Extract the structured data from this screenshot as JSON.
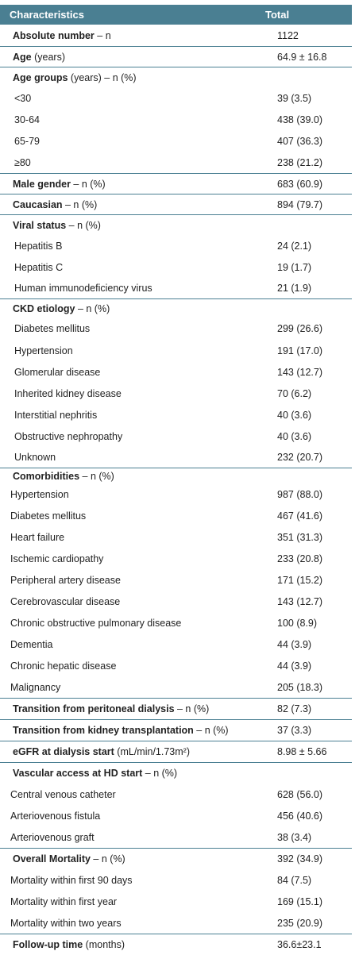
{
  "header": {
    "col1": "Characteristics",
    "col2": "Total"
  },
  "rows": [
    {
      "label_bold": "Absolute number",
      "label_rest": " – n",
      "value": "1122",
      "type": "group",
      "sep": false,
      "h": 27
    },
    {
      "label_bold": "Age",
      "label_rest": " (years)",
      "value": "64.9 ± 16.8",
      "type": "group",
      "sep": true,
      "h": 26
    },
    {
      "label_bold": "Age groups",
      "label_rest": " (years) – n (%)",
      "value": "",
      "type": "group",
      "sep": true,
      "h": 26
    },
    {
      "label_bold": "",
      "label_rest": "<30",
      "value": "39 (3.5)",
      "type": "sub",
      "sep": false,
      "h": 27
    },
    {
      "label_bold": "",
      "label_rest": "30-64",
      "value": "438 (39.0)",
      "type": "sub",
      "sep": false,
      "h": 27
    },
    {
      "label_bold": "",
      "label_rest": "65-79",
      "value": "407 (36.3)",
      "type": "sub",
      "sep": false,
      "h": 27
    },
    {
      "label_bold": "",
      "label_rest": "≥80",
      "value": "238 (21.2)",
      "type": "sub",
      "sep": false,
      "h": 27
    },
    {
      "label_bold": "Male gender",
      "label_rest": " – n (%)",
      "value": "683 (60.9)",
      "type": "group",
      "sep": true,
      "h": 26
    },
    {
      "label_bold": "Caucasian",
      "label_rest": " – n (%)",
      "value": "894 (79.7)",
      "type": "group",
      "sep": true,
      "h": 26
    },
    {
      "label_bold": "Viral status",
      "label_rest": " – n (%)",
      "value": "",
      "type": "group",
      "sep": true,
      "h": 26
    },
    {
      "label_bold": "",
      "label_rest": "Hepatitis B",
      "value": "24 (2.1)",
      "type": "sub",
      "sep": false,
      "h": 27
    },
    {
      "label_bold": "",
      "label_rest": "Hepatitis C",
      "value": "19 (1.7)",
      "type": "sub",
      "sep": false,
      "h": 27
    },
    {
      "label_bold": "",
      "label_rest": "Human immunodeficiency virus",
      "value": "21 (1.9)",
      "type": "sub",
      "sep": false,
      "h": 26
    },
    {
      "label_bold": "CKD etiology",
      "label_rest": " – n (%)",
      "value": "",
      "type": "group",
      "sep": true,
      "h": 24
    },
    {
      "label_bold": "",
      "label_rest": "Diabetes mellitus",
      "value": "299 (26.6)",
      "type": "sub",
      "sep": false,
      "h": 28
    },
    {
      "label_bold": "",
      "label_rest": "Hypertension",
      "value": "191 (17.0)",
      "type": "sub",
      "sep": false,
      "h": 27
    },
    {
      "label_bold": "",
      "label_rest": "Glomerular disease",
      "value": "143 (12.7)",
      "type": "sub",
      "sep": false,
      "h": 27
    },
    {
      "label_bold": "",
      "label_rest": "Inherited kidney disease",
      "value": "70 (6.2)",
      "type": "sub",
      "sep": false,
      "h": 27
    },
    {
      "label_bold": "",
      "label_rest": "Interstitial nephritis",
      "value": "40 (3.6)",
      "type": "sub",
      "sep": false,
      "h": 27
    },
    {
      "label_bold": "",
      "label_rest": "Obstructive nephropathy",
      "value": "40 (3.6)",
      "type": "sub",
      "sep": false,
      "h": 27
    },
    {
      "label_bold": "",
      "label_rest": "Unknown",
      "value": "232 (20.7)",
      "type": "sub",
      "sep": false,
      "h": 26
    },
    {
      "label_bold": "Comorbidities",
      "label_rest": " – n (%)",
      "value": "",
      "type": "group",
      "sep": true,
      "h": 20
    },
    {
      "label_bold": "",
      "label_rest": "Hypertension",
      "value": "987 (88.0)",
      "type": "sub2",
      "sep": false,
      "h": 27
    },
    {
      "label_bold": "",
      "label_rest": "Diabetes mellitus",
      "value": "467 (41.6)",
      "type": "sub2",
      "sep": false,
      "h": 27
    },
    {
      "label_bold": "",
      "label_rest": "Heart failure",
      "value": "351 (31.3)",
      "type": "sub2",
      "sep": false,
      "h": 27
    },
    {
      "label_bold": "",
      "label_rest": "Ischemic cardiopathy",
      "value": "233 (20.8)",
      "type": "sub2",
      "sep": false,
      "h": 27
    },
    {
      "label_bold": "",
      "label_rest": "Peripheral artery disease",
      "value": "171 (15.2)",
      "type": "sub2",
      "sep": false,
      "h": 27
    },
    {
      "label_bold": "",
      "label_rest": "Cerebrovascular disease",
      "value": "143 (12.7)",
      "type": "sub2",
      "sep": false,
      "h": 27
    },
    {
      "label_bold": "",
      "label_rest": "Chronic obstructive pulmonary disease",
      "value": "100 (8.9)",
      "type": "sub2",
      "sep": false,
      "h": 27
    },
    {
      "label_bold": "",
      "label_rest": "Dementia",
      "value": "44 (3.9)",
      "type": "sub2",
      "sep": false,
      "h": 27
    },
    {
      "label_bold": "",
      "label_rest": "Chronic hepatic disease",
      "value": "44 (3.9)",
      "type": "sub2",
      "sep": false,
      "h": 27
    },
    {
      "label_bold": "",
      "label_rest": "Malignancy",
      "value": "205 (18.3)",
      "type": "sub2",
      "sep": false,
      "h": 27
    },
    {
      "label_bold": "Transition from peritoneal dialysis",
      "label_rest": " – n (%)",
      "value": "82 (7.3)",
      "type": "group",
      "sep": true,
      "h": 27
    },
    {
      "label_bold": "Transition from kidney transplantation",
      "label_rest": " – n (%)",
      "value": "37 (3.3)",
      "type": "group",
      "sep": true,
      "h": 27
    },
    {
      "label_bold": "eGFR at dialysis start",
      "label_rest": " (mL/min/1.73m²)",
      "value": "8.98 ± 5.66",
      "type": "group",
      "sep": true,
      "h": 27
    },
    {
      "label_bold": "Vascular access at HD start",
      "label_rest": " – n (%)",
      "value": "",
      "type": "group",
      "sep": true,
      "h": 27
    },
    {
      "label_bold": "",
      "label_rest": "Central venous catheter",
      "value": "628 (56.0)",
      "type": "sub2",
      "sep": false,
      "h": 27
    },
    {
      "label_bold": "",
      "label_rest": "Arteriovenous fistula",
      "value": "456 (40.6)",
      "type": "sub2",
      "sep": false,
      "h": 27
    },
    {
      "label_bold": "",
      "label_rest": "Arteriovenous graft",
      "value": "38 (3.4)",
      "type": "sub2",
      "sep": false,
      "h": 27
    },
    {
      "label_bold": "Overall Mortality",
      "label_rest": " – n (%)",
      "value": "392 (34.9)",
      "type": "group",
      "sep": true,
      "h": 27
    },
    {
      "label_bold": "",
      "label_rest": "Mortality within first 90 days",
      "value": "84 (7.5)",
      "type": "sub2",
      "sep": false,
      "h": 27
    },
    {
      "label_bold": "",
      "label_rest": "Mortality within first year",
      "value": "169 (15.1)",
      "type": "sub2",
      "sep": false,
      "h": 27
    },
    {
      "label_bold": "",
      "label_rest": "Mortality within two years",
      "value": "235 (20.9)",
      "type": "sub2",
      "sep": false,
      "h": 27
    },
    {
      "label_bold": "Follow-up time",
      "label_rest": " (months)",
      "value": "36.6±23.1",
      "type": "group",
      "sep": true,
      "h": 27
    }
  ]
}
